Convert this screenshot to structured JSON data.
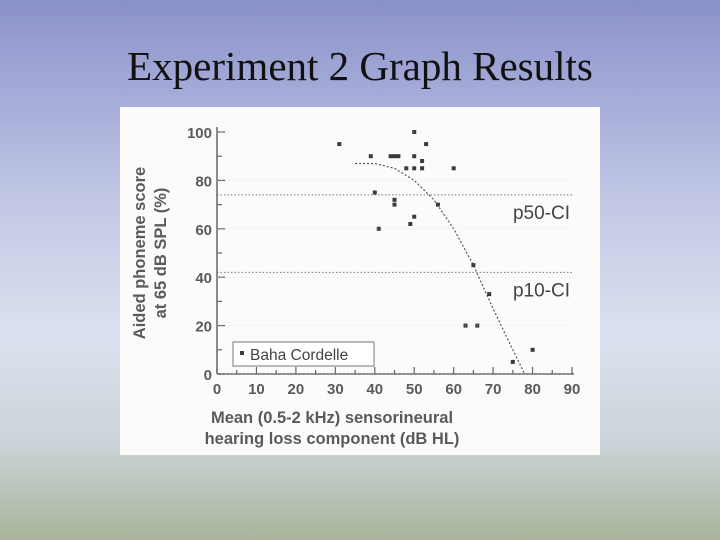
{
  "slide": {
    "title": "Experiment 2 Graph Results"
  },
  "chart_data": {
    "type": "scatter",
    "title": "",
    "xlabel": "Mean (0.5-2 kHz) sensorineural",
    "xlabel_line2": "hearing loss component (dB HL)",
    "ylabel": "Aided phoneme score",
    "ylabel_line2": "at 65 dB SPL (%)",
    "xlim": [
      0,
      90
    ],
    "ylim": [
      0,
      100
    ],
    "x_ticks": [
      0,
      10,
      20,
      30,
      40,
      50,
      60,
      70,
      80,
      90
    ],
    "y_ticks": [
      0,
      20,
      40,
      60,
      80,
      100
    ],
    "grid": false,
    "legend": {
      "position": "bottom-left",
      "entries": [
        "Baha Cordelle"
      ]
    },
    "reference_lines": [
      {
        "label": "p50-CI",
        "y": 74
      },
      {
        "label": "p10-CI",
        "y": 42
      }
    ],
    "series": [
      {
        "name": "Baha Cordelle",
        "points": [
          {
            "x": 31,
            "y": 95
          },
          {
            "x": 39,
            "y": 90
          },
          {
            "x": 44,
            "y": 90
          },
          {
            "x": 45,
            "y": 90
          },
          {
            "x": 46,
            "y": 90
          },
          {
            "x": 48,
            "y": 85
          },
          {
            "x": 50,
            "y": 85
          },
          {
            "x": 52,
            "y": 85
          },
          {
            "x": 50,
            "y": 90
          },
          {
            "x": 52,
            "y": 88
          },
          {
            "x": 50,
            "y": 100
          },
          {
            "x": 53,
            "y": 95
          },
          {
            "x": 60,
            "y": 85
          },
          {
            "x": 40,
            "y": 75
          },
          {
            "x": 45,
            "y": 72
          },
          {
            "x": 45,
            "y": 70
          },
          {
            "x": 56,
            "y": 70
          },
          {
            "x": 41,
            "y": 60
          },
          {
            "x": 50,
            "y": 65
          },
          {
            "x": 49,
            "y": 62
          },
          {
            "x": 65,
            "y": 45
          },
          {
            "x": 69,
            "y": 33
          },
          {
            "x": 63,
            "y": 20
          },
          {
            "x": 66,
            "y": 20
          },
          {
            "x": 75,
            "y": 5
          },
          {
            "x": 80,
            "y": 10
          }
        ]
      }
    ],
    "fit_curve": {
      "points": [
        {
          "x": 35,
          "y": 87
        },
        {
          "x": 40,
          "y": 87
        },
        {
          "x": 45,
          "y": 85
        },
        {
          "x": 50,
          "y": 80
        },
        {
          "x": 55,
          "y": 72
        },
        {
          "x": 60,
          "y": 60
        },
        {
          "x": 65,
          "y": 45
        },
        {
          "x": 70,
          "y": 27
        },
        {
          "x": 75,
          "y": 10
        },
        {
          "x": 78,
          "y": 0
        }
      ]
    }
  }
}
